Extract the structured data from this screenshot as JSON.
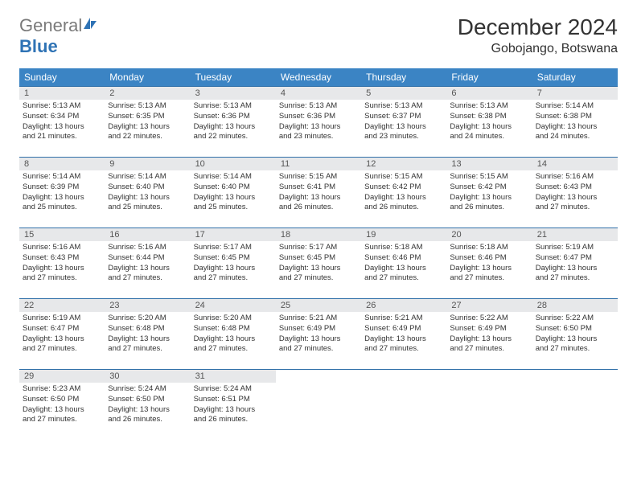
{
  "logo": {
    "general": "General",
    "blue": "Blue"
  },
  "title": "December 2024",
  "location": "Gobojango, Botswana",
  "colors": {
    "header_bg": "#3b84c4",
    "header_text": "#ffffff",
    "date_bg": "#e7e8ea",
    "border": "#2f6fa8",
    "logo_gray": "#7a7a7a",
    "logo_blue": "#2f73b5"
  },
  "day_headers": [
    "Sunday",
    "Monday",
    "Tuesday",
    "Wednesday",
    "Thursday",
    "Friday",
    "Saturday"
  ],
  "days": [
    {
      "n": "1",
      "sunrise": "Sunrise: 5:13 AM",
      "sunset": "Sunset: 6:34 PM",
      "day1": "Daylight: 13 hours",
      "day2": "and 21 minutes."
    },
    {
      "n": "2",
      "sunrise": "Sunrise: 5:13 AM",
      "sunset": "Sunset: 6:35 PM",
      "day1": "Daylight: 13 hours",
      "day2": "and 22 minutes."
    },
    {
      "n": "3",
      "sunrise": "Sunrise: 5:13 AM",
      "sunset": "Sunset: 6:36 PM",
      "day1": "Daylight: 13 hours",
      "day2": "and 22 minutes."
    },
    {
      "n": "4",
      "sunrise": "Sunrise: 5:13 AM",
      "sunset": "Sunset: 6:36 PM",
      "day1": "Daylight: 13 hours",
      "day2": "and 23 minutes."
    },
    {
      "n": "5",
      "sunrise": "Sunrise: 5:13 AM",
      "sunset": "Sunset: 6:37 PM",
      "day1": "Daylight: 13 hours",
      "day2": "and 23 minutes."
    },
    {
      "n": "6",
      "sunrise": "Sunrise: 5:13 AM",
      "sunset": "Sunset: 6:38 PM",
      "day1": "Daylight: 13 hours",
      "day2": "and 24 minutes."
    },
    {
      "n": "7",
      "sunrise": "Sunrise: 5:14 AM",
      "sunset": "Sunset: 6:38 PM",
      "day1": "Daylight: 13 hours",
      "day2": "and 24 minutes."
    },
    {
      "n": "8",
      "sunrise": "Sunrise: 5:14 AM",
      "sunset": "Sunset: 6:39 PM",
      "day1": "Daylight: 13 hours",
      "day2": "and 25 minutes."
    },
    {
      "n": "9",
      "sunrise": "Sunrise: 5:14 AM",
      "sunset": "Sunset: 6:40 PM",
      "day1": "Daylight: 13 hours",
      "day2": "and 25 minutes."
    },
    {
      "n": "10",
      "sunrise": "Sunrise: 5:14 AM",
      "sunset": "Sunset: 6:40 PM",
      "day1": "Daylight: 13 hours",
      "day2": "and 25 minutes."
    },
    {
      "n": "11",
      "sunrise": "Sunrise: 5:15 AM",
      "sunset": "Sunset: 6:41 PM",
      "day1": "Daylight: 13 hours",
      "day2": "and 26 minutes."
    },
    {
      "n": "12",
      "sunrise": "Sunrise: 5:15 AM",
      "sunset": "Sunset: 6:42 PM",
      "day1": "Daylight: 13 hours",
      "day2": "and 26 minutes."
    },
    {
      "n": "13",
      "sunrise": "Sunrise: 5:15 AM",
      "sunset": "Sunset: 6:42 PM",
      "day1": "Daylight: 13 hours",
      "day2": "and 26 minutes."
    },
    {
      "n": "14",
      "sunrise": "Sunrise: 5:16 AM",
      "sunset": "Sunset: 6:43 PM",
      "day1": "Daylight: 13 hours",
      "day2": "and 27 minutes."
    },
    {
      "n": "15",
      "sunrise": "Sunrise: 5:16 AM",
      "sunset": "Sunset: 6:43 PM",
      "day1": "Daylight: 13 hours",
      "day2": "and 27 minutes."
    },
    {
      "n": "16",
      "sunrise": "Sunrise: 5:16 AM",
      "sunset": "Sunset: 6:44 PM",
      "day1": "Daylight: 13 hours",
      "day2": "and 27 minutes."
    },
    {
      "n": "17",
      "sunrise": "Sunrise: 5:17 AM",
      "sunset": "Sunset: 6:45 PM",
      "day1": "Daylight: 13 hours",
      "day2": "and 27 minutes."
    },
    {
      "n": "18",
      "sunrise": "Sunrise: 5:17 AM",
      "sunset": "Sunset: 6:45 PM",
      "day1": "Daylight: 13 hours",
      "day2": "and 27 minutes."
    },
    {
      "n": "19",
      "sunrise": "Sunrise: 5:18 AM",
      "sunset": "Sunset: 6:46 PM",
      "day1": "Daylight: 13 hours",
      "day2": "and 27 minutes."
    },
    {
      "n": "20",
      "sunrise": "Sunrise: 5:18 AM",
      "sunset": "Sunset: 6:46 PM",
      "day1": "Daylight: 13 hours",
      "day2": "and 27 minutes."
    },
    {
      "n": "21",
      "sunrise": "Sunrise: 5:19 AM",
      "sunset": "Sunset: 6:47 PM",
      "day1": "Daylight: 13 hours",
      "day2": "and 27 minutes."
    },
    {
      "n": "22",
      "sunrise": "Sunrise: 5:19 AM",
      "sunset": "Sunset: 6:47 PM",
      "day1": "Daylight: 13 hours",
      "day2": "and 27 minutes."
    },
    {
      "n": "23",
      "sunrise": "Sunrise: 5:20 AM",
      "sunset": "Sunset: 6:48 PM",
      "day1": "Daylight: 13 hours",
      "day2": "and 27 minutes."
    },
    {
      "n": "24",
      "sunrise": "Sunrise: 5:20 AM",
      "sunset": "Sunset: 6:48 PM",
      "day1": "Daylight: 13 hours",
      "day2": "and 27 minutes."
    },
    {
      "n": "25",
      "sunrise": "Sunrise: 5:21 AM",
      "sunset": "Sunset: 6:49 PM",
      "day1": "Daylight: 13 hours",
      "day2": "and 27 minutes."
    },
    {
      "n": "26",
      "sunrise": "Sunrise: 5:21 AM",
      "sunset": "Sunset: 6:49 PM",
      "day1": "Daylight: 13 hours",
      "day2": "and 27 minutes."
    },
    {
      "n": "27",
      "sunrise": "Sunrise: 5:22 AM",
      "sunset": "Sunset: 6:49 PM",
      "day1": "Daylight: 13 hours",
      "day2": "and 27 minutes."
    },
    {
      "n": "28",
      "sunrise": "Sunrise: 5:22 AM",
      "sunset": "Sunset: 6:50 PM",
      "day1": "Daylight: 13 hours",
      "day2": "and 27 minutes."
    },
    {
      "n": "29",
      "sunrise": "Sunrise: 5:23 AM",
      "sunset": "Sunset: 6:50 PM",
      "day1": "Daylight: 13 hours",
      "day2": "and 27 minutes."
    },
    {
      "n": "30",
      "sunrise": "Sunrise: 5:24 AM",
      "sunset": "Sunset: 6:50 PM",
      "day1": "Daylight: 13 hours",
      "day2": "and 26 minutes."
    },
    {
      "n": "31",
      "sunrise": "Sunrise: 5:24 AM",
      "sunset": "Sunset: 6:51 PM",
      "day1": "Daylight: 13 hours",
      "day2": "and 26 minutes."
    }
  ]
}
